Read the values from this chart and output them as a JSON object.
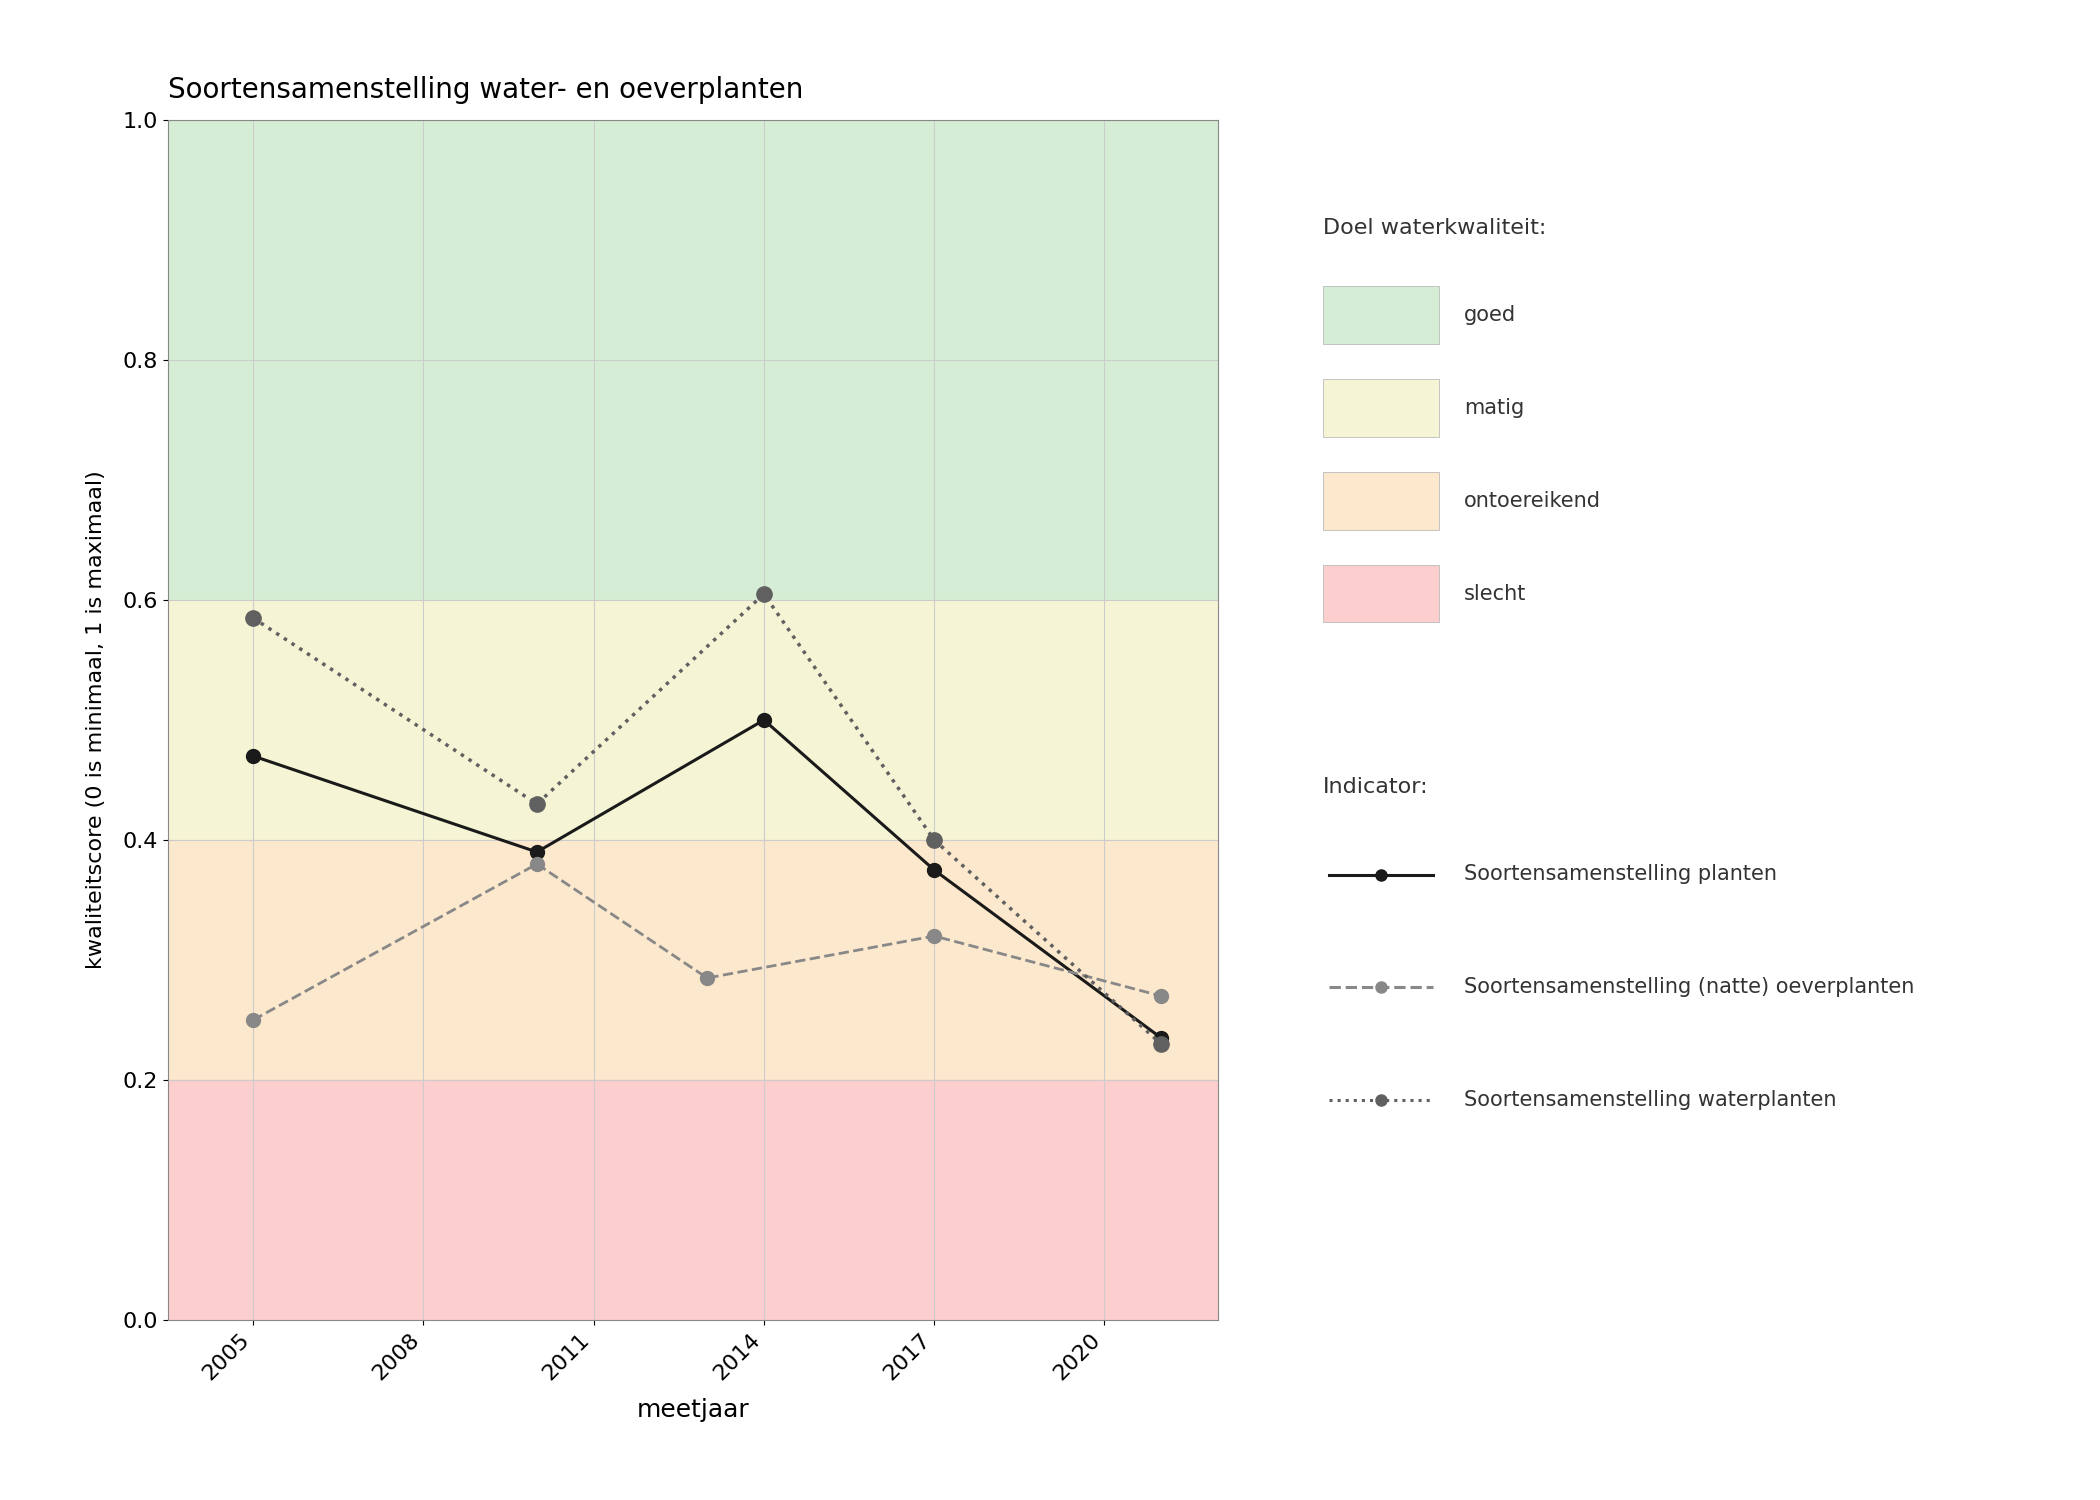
{
  "title": "Soortensamenstelling water- en oeverplanten",
  "xlabel": "meetjaar",
  "ylabel": "kwaliteitscore (0 is minimaal, 1 is maximaal)",
  "ylim": [
    0.0,
    1.0
  ],
  "xlim": [
    2003.5,
    2022.0
  ],
  "xticks": [
    2005,
    2008,
    2011,
    2014,
    2017,
    2020
  ],
  "yticks": [
    0.0,
    0.2,
    0.4,
    0.6,
    0.8,
    1.0
  ],
  "background_color": "#ffffff",
  "band_colors": {
    "goed": "#d5edd5",
    "matig": "#f5f5d5",
    "ontoereikend": "#fce8cc",
    "slecht": "#fccece"
  },
  "band_ranges": {
    "goed": [
      0.6,
      1.0
    ],
    "matig": [
      0.4,
      0.6
    ],
    "ontoereikend": [
      0.2,
      0.4
    ],
    "slecht": [
      0.0,
      0.2
    ]
  },
  "series": {
    "planten": {
      "years": [
        2005,
        2010,
        2014,
        2017,
        2021
      ],
      "values": [
        0.47,
        0.39,
        0.5,
        0.375,
        0.235
      ],
      "color": "#1a1a1a",
      "linestyle": "-",
      "marker": "o",
      "markersize": 10,
      "linewidth": 2.2,
      "label": "Soortensamenstelling planten"
    },
    "oeverplanten": {
      "years": [
        2005,
        2010,
        2013,
        2017,
        2021
      ],
      "values": [
        0.25,
        0.38,
        0.285,
        0.32,
        0.27
      ],
      "color": "#888888",
      "linestyle": "--",
      "marker": "o",
      "markersize": 10,
      "linewidth": 2.0,
      "label": "Soortensamenstelling (natte) oeverplanten"
    },
    "waterplanten": {
      "years": [
        2005,
        2010,
        2014,
        2017,
        2021
      ],
      "values": [
        0.585,
        0.43,
        0.605,
        0.4,
        0.23
      ],
      "color": "#606060",
      "linestyle": ":",
      "marker": "o",
      "markersize": 11,
      "linewidth": 2.5,
      "label": "Soortensamenstelling waterplanten"
    }
  },
  "legend_quality_title": "Doel waterkwaliteit:",
  "legend_indicator_title": "Indicator:",
  "grid_color": "#cccccc",
  "grid_linewidth": 0.8,
  "band_labels": [
    "goed",
    "matig",
    "ontoereikend",
    "slecht"
  ]
}
